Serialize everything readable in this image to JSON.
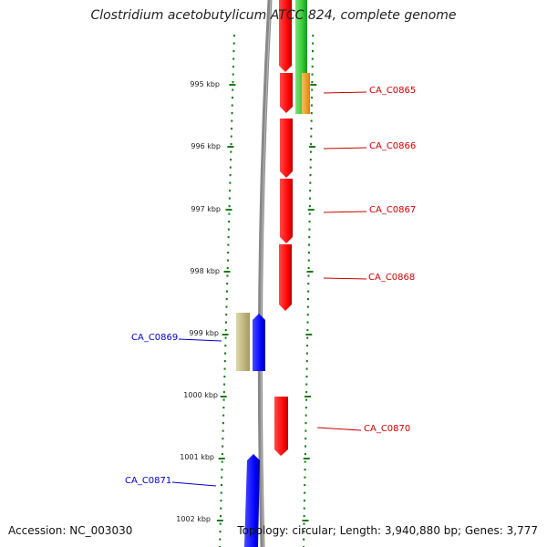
{
  "title": "Clostridium acetobutylicum ATCC 824, complete genome",
  "footer": {
    "accession": "Accession: NC_003030",
    "summary": "Topology: circular; Length: 3,940,880 bp; Genes: 3,777"
  },
  "scale": {
    "ticks": [
      "995 kbp",
      "996 kbp",
      "997 kbp",
      "998 kbp",
      "999 kbp",
      "1000 kbp",
      "1001 kbp",
      "1002 kbp"
    ]
  },
  "genes": [
    {
      "label": "CA_C0865",
      "strand": "forward"
    },
    {
      "label": "CA_C0866",
      "strand": "forward"
    },
    {
      "label": "CA_C0867",
      "strand": "forward"
    },
    {
      "label": "CA_C0868",
      "strand": "forward"
    },
    {
      "label": "CA_C0869",
      "strand": "reverse"
    },
    {
      "label": "CA_C0870",
      "strand": "forward"
    },
    {
      "label": "CA_C0871",
      "strand": "reverse"
    }
  ],
  "colors": {
    "forward_gene": "#ff0000",
    "reverse_gene": "#0000ff",
    "forward_label": "#cc0000",
    "reverse_label": "#0000cc",
    "rna_gene": "#33cc33",
    "orange_feature": "#ff9900",
    "khaki_feature": "#c8c08a",
    "backbone": "#888888",
    "dots": "#1a7a1a"
  }
}
